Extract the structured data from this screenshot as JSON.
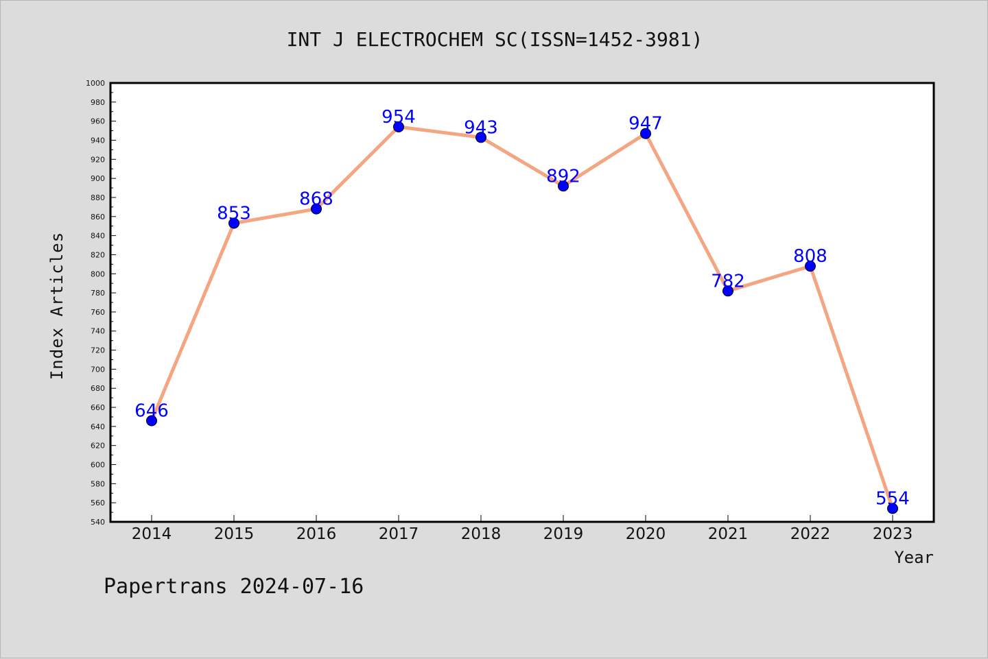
{
  "chart_data": {
    "type": "line",
    "title": "INT J ELECTROCHEM SC(ISSN=1452-3981)",
    "xlabel": "Year",
    "ylabel": "Index Articles",
    "categories": [
      "2014",
      "2015",
      "2016",
      "2017",
      "2018",
      "2019",
      "2020",
      "2021",
      "2022",
      "2023"
    ],
    "values": [
      646,
      853,
      868,
      954,
      943,
      892,
      947,
      782,
      808,
      554
    ],
    "data_labels": [
      "646",
      "853",
      "868",
      "954",
      "943",
      "892",
      "947",
      "782",
      "808",
      "554"
    ],
    "ylim": [
      540,
      1000
    ],
    "yticks": [
      "540",
      "560",
      "580",
      "600",
      "620",
      "640",
      "660",
      "680",
      "700",
      "720",
      "740",
      "760",
      "780",
      "800",
      "820",
      "840",
      "860",
      "880",
      "900",
      "920",
      "940",
      "960",
      "980",
      "1000"
    ],
    "grid": false,
    "line_color": "#f4a582",
    "marker_color": "#0000ff",
    "label_color": "#0000ff",
    "background": "#dcdcdc",
    "plot_background": "#ffffff"
  },
  "footer": {
    "text": "Papertrans 2024-07-16"
  }
}
